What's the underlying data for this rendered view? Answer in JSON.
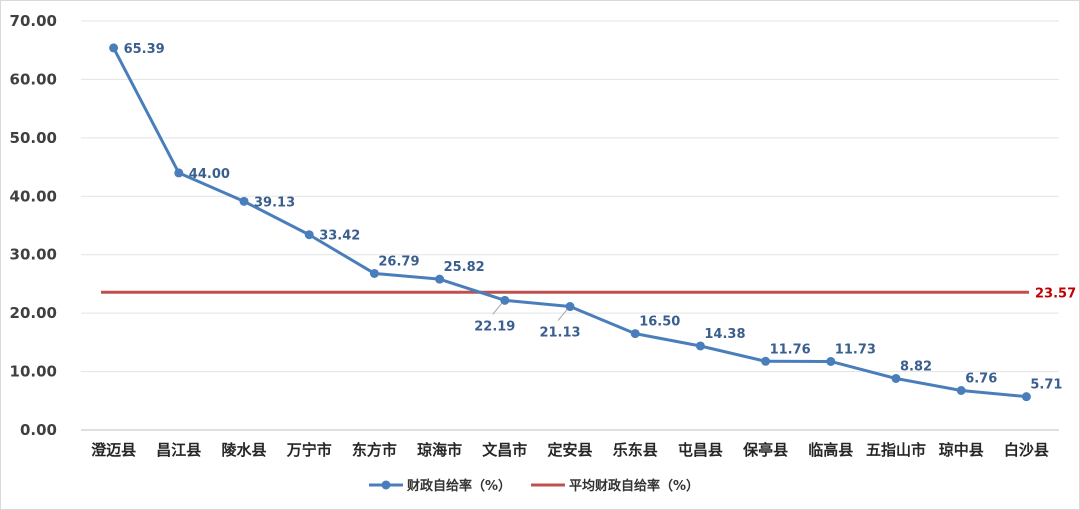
{
  "chart_data": {
    "type": "line",
    "title": "",
    "xlabel": "",
    "ylabel": "",
    "ylim": [
      0,
      70
    ],
    "yticks": [
      "0.00",
      "10.00",
      "20.00",
      "30.00",
      "40.00",
      "50.00",
      "60.00",
      "70.00"
    ],
    "grid": "horizontal",
    "legend_position": "bottom",
    "categories": [
      "澄迈县",
      "昌江县",
      "陵水县",
      "万宁市",
      "东方市",
      "琼海市",
      "文昌市",
      "定安县",
      "乐东县",
      "屯昌县",
      "保亭县",
      "临高县",
      "五指山市",
      "琼中县",
      "白沙县"
    ],
    "series": [
      {
        "name": "财政自给率（%）",
        "color": "#4a7ebb",
        "values": [
          65.39,
          44.0,
          39.13,
          33.42,
          26.79,
          25.82,
          22.19,
          21.13,
          16.5,
          14.38,
          11.76,
          11.73,
          8.82,
          6.76,
          5.71
        ],
        "labels": [
          "65.39",
          "44.00",
          "39.13",
          "33.42",
          "26.79",
          "25.82",
          "22.19",
          "21.13",
          "16.50",
          "14.38",
          "11.76",
          "11.73",
          "8.82",
          "6.76",
          "5.71"
        ]
      },
      {
        "name": "平均财政自给率（%）",
        "color": "#c0504d",
        "values": [
          23.57,
          23.57,
          23.57,
          23.57,
          23.57,
          23.57,
          23.57,
          23.57,
          23.57,
          23.57,
          23.57,
          23.57,
          23.57,
          23.57,
          23.57
        ],
        "label": "23.57"
      }
    ]
  }
}
